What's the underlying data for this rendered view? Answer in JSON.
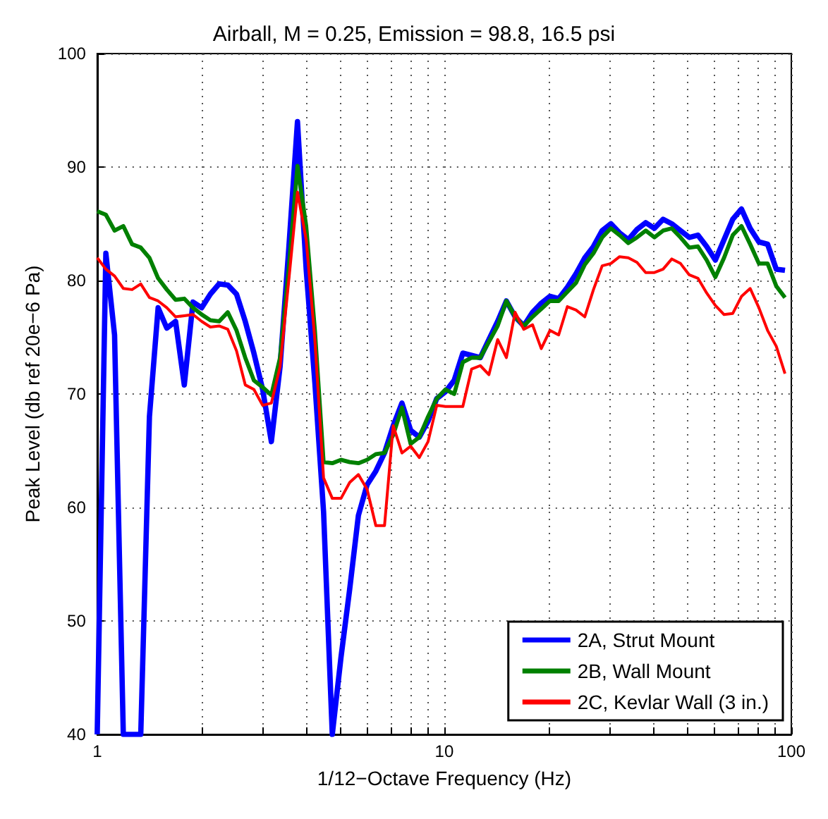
{
  "chart_data": {
    "type": "line",
    "title": "Airball, M = 0.25, Emission = 98.8, 16.5 psi",
    "xlabel": "1/12−Octave Frequency (Hz)",
    "ylabel": "Peak Level (db ref 20e−6 Pa)",
    "log": "x",
    "x": [
      1,
      1.059,
      1.122,
      1.189,
      1.26,
      1.335,
      1.414,
      1.498,
      1.587,
      1.682,
      1.782,
      1.888,
      2,
      2.119,
      2.245,
      2.378,
      2.52,
      2.67,
      2.828,
      2.997,
      3.175,
      3.364,
      3.564,
      3.776,
      4,
      4.238,
      4.49,
      4.757,
      5.04,
      5.339,
      5.657,
      5.993,
      6.35,
      6.727,
      7.127,
      7.551,
      8,
      8.476,
      8.98,
      9.514,
      10.08,
      10.68,
      11.31,
      11.99,
      12.7,
      13.45,
      14.25,
      15.1,
      16,
      16.95,
      17.96,
      19.03,
      20.16,
      21.36,
      22.63,
      23.97,
      25.4,
      26.91,
      28.51,
      30.2,
      32,
      33.9,
      35.92,
      38.05,
      40.32,
      42.71,
      45.25,
      47.94,
      50.8,
      53.82,
      57.02,
      60.41,
      64,
      67.81,
      71.84,
      76.11,
      80.63,
      85.43,
      90.51,
      95.89
    ],
    "series": [
      {
        "name": "2A, Strut Mount",
        "color": "#0000ff",
        "values": [
          40,
          82.4,
          75.2,
          40,
          40,
          40,
          68,
          77.6,
          75.8,
          76.4,
          70.8,
          78.1,
          77.6,
          78.8,
          79.7,
          79.6,
          78.8,
          76.4,
          73.6,
          70.4,
          65.8,
          72.4,
          82.8,
          94,
          81,
          71,
          59.6,
          40,
          46.8,
          52.8,
          59.3,
          62,
          63.2,
          64.8,
          67.2,
          69.2,
          66.8,
          66.2,
          67.6,
          69.6,
          70.2,
          71.2,
          73.6,
          73.4,
          73.2,
          74.8,
          76.4,
          78.2,
          76.8,
          76,
          77.2,
          78,
          78.6,
          78.4,
          79.4,
          80.6,
          82,
          83,
          84.4,
          85,
          84.2,
          83.6,
          84.5,
          85.1,
          84.6,
          85.4,
          85,
          84.4,
          83.8,
          84,
          83,
          81.8,
          83.6,
          85.4,
          86.3,
          84.6,
          83.4,
          83.2,
          81,
          80.9
        ]
      },
      {
        "name": "2B, Wall Mount",
        "color": "#008000",
        "values": [
          86.1,
          85.8,
          84.4,
          84.8,
          83.2,
          82.9,
          82,
          80.2,
          79.2,
          78.3,
          78.4,
          77.6,
          77,
          76.5,
          76.4,
          77.2,
          75.6,
          73.2,
          71.2,
          70.6,
          69.9,
          73.2,
          81,
          90.1,
          84.8,
          75.6,
          64,
          63.9,
          64.2,
          64,
          63.9,
          64.2,
          64.7,
          64.8,
          66.4,
          68.8,
          65.6,
          66.2,
          68,
          69.6,
          70.4,
          70,
          72.8,
          73.2,
          73.2,
          74.6,
          76,
          78.2,
          76.8,
          76,
          76.8,
          77.5,
          78.2,
          78.2,
          79,
          79.8,
          81.4,
          82.4,
          83.8,
          84.6,
          84,
          83.3,
          83.8,
          84.4,
          83.8,
          84.4,
          84.6,
          83.8,
          82.9,
          83,
          81.8,
          80.3,
          82,
          84,
          84.8,
          83.2,
          81.5,
          81.5,
          79.5,
          78.5
        ]
      },
      {
        "name": "2C, Kevlar Wall (3 in.)",
        "color": "#ff0000",
        "values": [
          82,
          81,
          80.4,
          79.3,
          79.2,
          79.7,
          78.5,
          78.2,
          77.6,
          76.8,
          76.9,
          77,
          76.4,
          75.9,
          76,
          75.7,
          73.8,
          70.8,
          70.4,
          69,
          69.2,
          72.4,
          80,
          87.8,
          83.6,
          74.8,
          62.6,
          60.8,
          60.8,
          62.2,
          62.9,
          61.6,
          58.4,
          58.4,
          67.2,
          64.8,
          65.4,
          64.4,
          65.8,
          69,
          68.9,
          68.9,
          68.9,
          72.2,
          72.5,
          71.7,
          74.8,
          73.2,
          77.2,
          75.7,
          76.1,
          74,
          75.6,
          75.2,
          77.7,
          77.4,
          76.8,
          79.2,
          81.3,
          81.5,
          82.1,
          82,
          81.6,
          80.7,
          80.7,
          81,
          81.9,
          81.5,
          80.5,
          80.2,
          78.9,
          77.8,
          77,
          77.1,
          78.6,
          79.3,
          77.6,
          75.6,
          74.2,
          71.8
        ]
      }
    ],
    "xlim": [
      1,
      100
    ],
    "xticks": [
      1,
      {
        "value": 2,
        "label": null
      },
      {
        "value": 3,
        "label": null
      },
      {
        "value": 4,
        "label": null
      },
      {
        "value": 5,
        "label": null
      },
      {
        "value": 6,
        "label": null
      },
      {
        "value": 7,
        "label": null
      },
      {
        "value": 8,
        "label": null
      },
      {
        "value": 9,
        "label": null
      },
      10,
      {
        "value": 20,
        "label": null
      },
      {
        "value": 30,
        "label": null
      },
      {
        "value": 40,
        "label": null
      },
      {
        "value": 50,
        "label": null
      },
      {
        "value": 60,
        "label": null
      },
      {
        "value": 70,
        "label": null
      },
      {
        "value": 80,
        "label": null
      },
      {
        "value": 90,
        "label": null
      },
      100
    ],
    "ylim": [
      40,
      100
    ],
    "yticks": [
      40,
      50,
      60,
      70,
      80,
      90,
      100
    ],
    "grid": true,
    "legend": "bottom right",
    "line_style": "solid"
  }
}
